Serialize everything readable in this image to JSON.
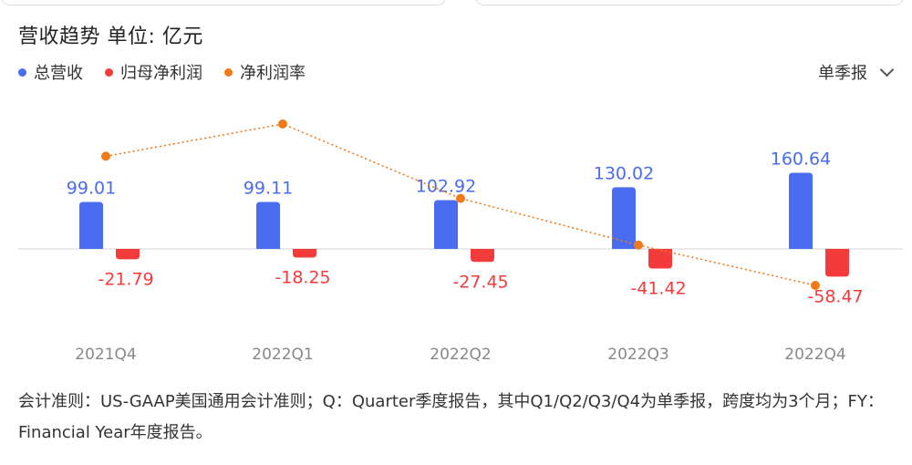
{
  "title": "营收趋势  单位: 亿元",
  "legend": [
    {
      "label": "总营收",
      "color": "#4a6cf0"
    },
    {
      "label": "归母净利润",
      "color": "#f43b3b"
    },
    {
      "label": "净利润率",
      "color": "#f07a1a"
    }
  ],
  "period_selector": {
    "label": "单季报",
    "icon": "chevron-down-icon"
  },
  "chart_data": {
    "type": "bar",
    "categories": [
      "2021Q4",
      "2022Q1",
      "2022Q2",
      "2022Q3",
      "2022Q4"
    ],
    "series": [
      {
        "name": "总营收",
        "type": "bar",
        "color": "#4a6cf0",
        "values": [
          99.01,
          99.11,
          102.92,
          130.02,
          160.64
        ],
        "labels": [
          "99.01",
          "99.11",
          "102.92",
          "130.02",
          "160.64"
        ]
      },
      {
        "name": "归母净利润",
        "type": "bar",
        "color": "#f43b3b",
        "values": [
          -21.79,
          -18.25,
          -27.45,
          -41.42,
          -58.47
        ],
        "labels": [
          "-21.79",
          "-18.25",
          "-27.45",
          "-41.42",
          "-58.47"
        ]
      },
      {
        "name": "净利润率",
        "type": "line",
        "color": "#f07a1a",
        "style": "dotted",
        "values": [
          -22.0,
          -18.4,
          -26.7,
          -31.9,
          -36.4
        ]
      }
    ],
    "xlabel": "",
    "ylabel": "",
    "grid": false,
    "legend_position": "top-left"
  },
  "footnote": "会计准则：US-GAAP美国通用会计准则；Q：Quarter季度报告，其中Q1/Q2/Q3/Q4为单季报，跨度均为3个月；FY：Financial Year年度报告。"
}
